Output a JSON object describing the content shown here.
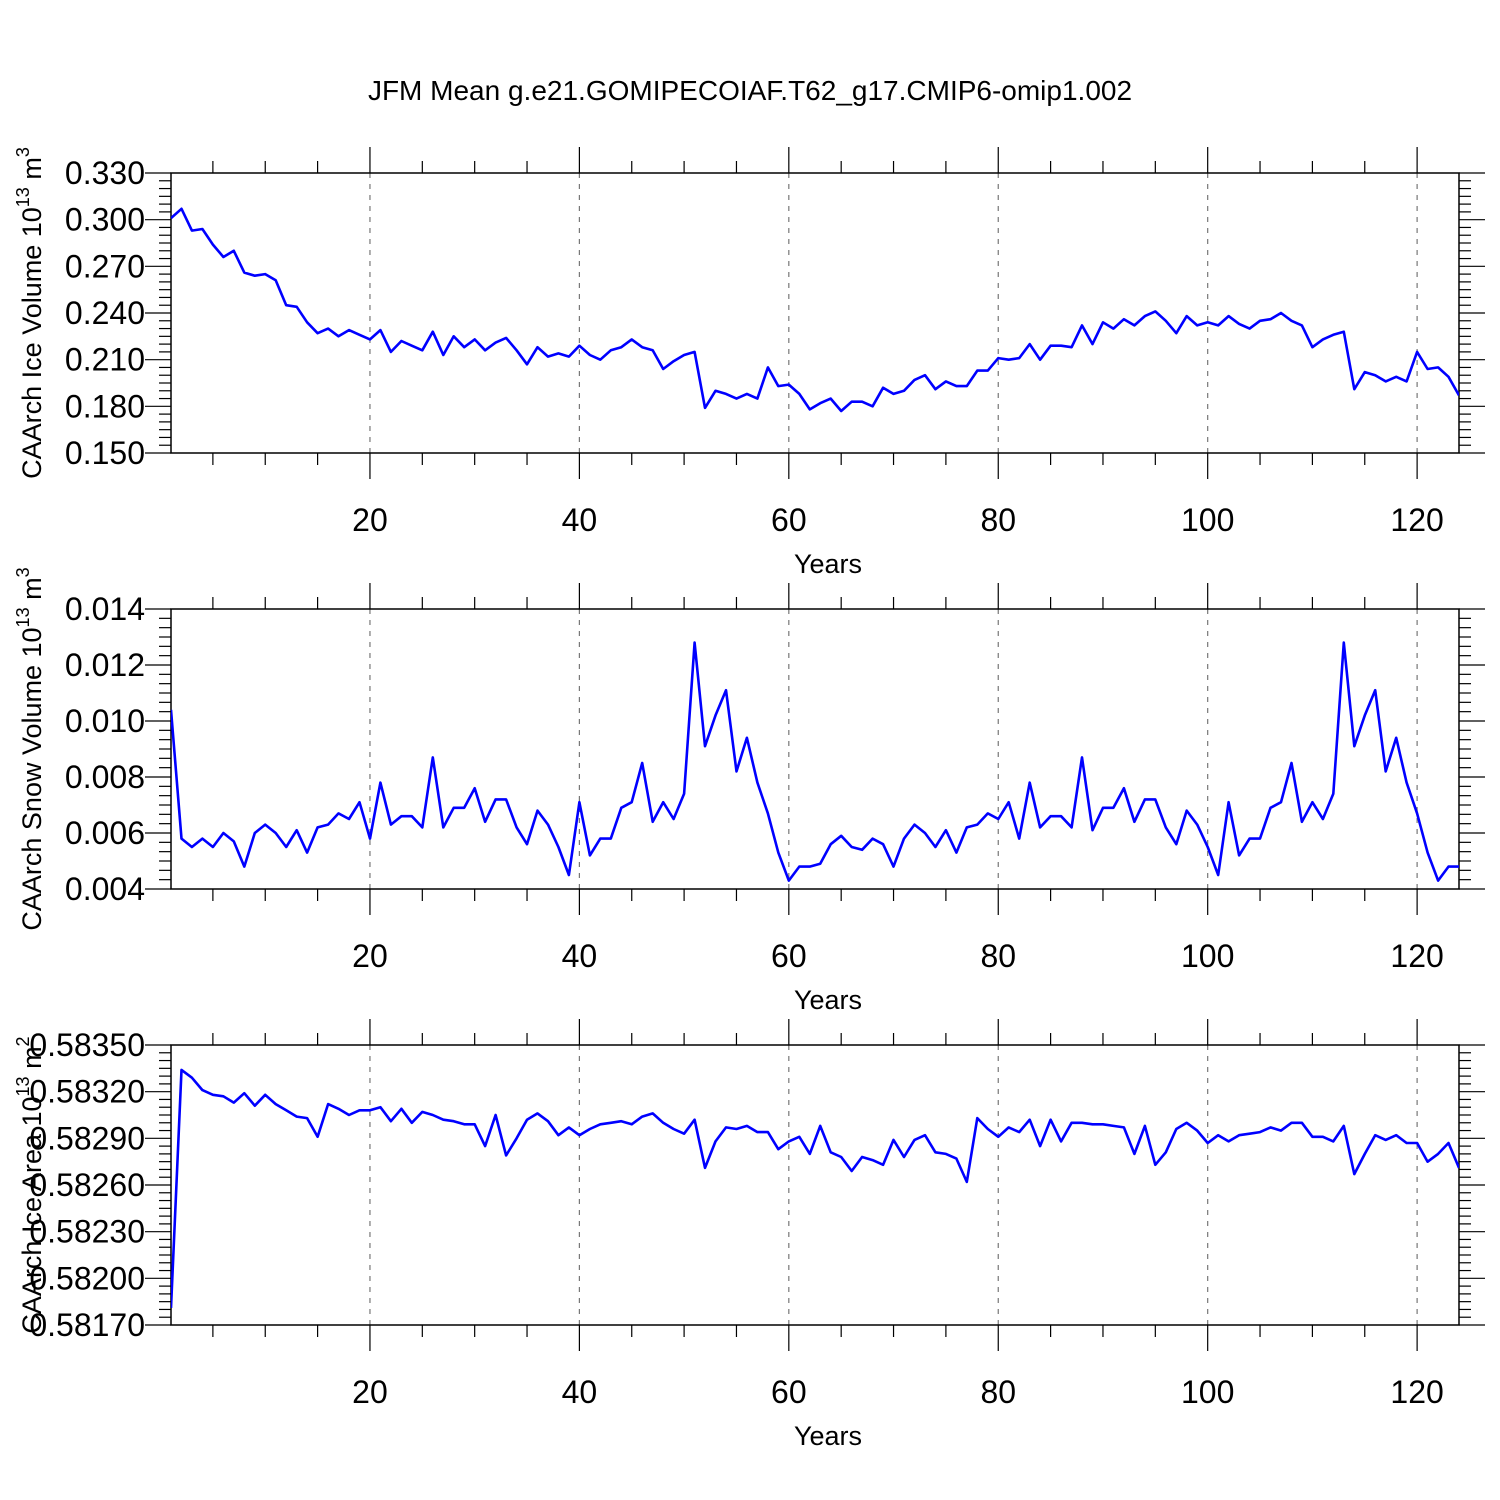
{
  "title": "JFM Mean g.e21.GOMIPECOIAF.T62_g17.CMIP6-omip1.002",
  "chart_data": [
    {
      "type": "line",
      "xlabel": "Years",
      "ylabel": "CAArch Ice Volume 10",
      "ylabel_exp": "13",
      "ylabel_unit": "m",
      "ylabel_unit_exp": "3",
      "xlim": [
        1,
        124
      ],
      "ylim": [
        0.15,
        0.33
      ],
      "xticks": [
        20,
        40,
        60,
        80,
        100,
        120
      ],
      "yticks": [
        "0.150",
        "0.180",
        "0.210",
        "0.240",
        "0.270",
        "0.300",
        "0.330"
      ],
      "grid_x": [
        20,
        40,
        60,
        80,
        100,
        120
      ],
      "series": [
        {
          "color": "#0000ff",
          "x_start": 1,
          "values": [
            0.301,
            0.307,
            0.293,
            0.294,
            0.284,
            0.276,
            0.28,
            0.266,
            0.264,
            0.265,
            0.261,
            0.245,
            0.244,
            0.234,
            0.227,
            0.23,
            0.225,
            0.229,
            0.226,
            0.223,
            0.229,
            0.215,
            0.222,
            0.219,
            0.216,
            0.228,
            0.213,
            0.225,
            0.218,
            0.223,
            0.216,
            0.221,
            0.224,
            0.216,
            0.207,
            0.218,
            0.212,
            0.214,
            0.212,
            0.219,
            0.213,
            0.21,
            0.216,
            0.218,
            0.223,
            0.218,
            0.216,
            0.204,
            0.209,
            0.213,
            0.215,
            0.179,
            0.19,
            0.188,
            0.185,
            0.188,
            0.185,
            0.205,
            0.193,
            0.194,
            0.188,
            0.178,
            0.182,
            0.185,
            0.177,
            0.183,
            0.183,
            0.18,
            0.192,
            0.188,
            0.19,
            0.197,
            0.2,
            0.191,
            0.196,
            0.193,
            0.193,
            0.203,
            0.203,
            0.211,
            0.21,
            0.211,
            0.22,
            0.21,
            0.219,
            0.219,
            0.218,
            0.232,
            0.22,
            0.234,
            0.23,
            0.236,
            0.232,
            0.238,
            0.241,
            0.235,
            0.227,
            0.238,
            0.232,
            0.234,
            0.232,
            0.238,
            0.233,
            0.23,
            0.235,
            0.236,
            0.24,
            0.235,
            0.232,
            0.218,
            0.223,
            0.226,
            0.228,
            0.191,
            0.202,
            0.2,
            0.196,
            0.199,
            0.196,
            0.215,
            0.204,
            0.205,
            0.199,
            0.187
          ]
        }
      ]
    },
    {
      "type": "line",
      "xlabel": "Years",
      "ylabel": "CAArch Snow Volume 10",
      "ylabel_exp": "13",
      "ylabel_unit": "m",
      "ylabel_unit_exp": "3",
      "xlim": [
        1,
        124
      ],
      "ylim": [
        0.004,
        0.014
      ],
      "xticks": [
        20,
        40,
        60,
        80,
        100,
        120
      ],
      "yticks": [
        "0.004",
        "0.006",
        "0.008",
        "0.010",
        "0.012",
        "0.014"
      ],
      "grid_x": [
        20,
        40,
        60,
        80,
        100,
        120
      ],
      "series": [
        {
          "color": "#0000ff",
          "x_start": 1,
          "values": [
            0.0104,
            0.0058,
            0.0055,
            0.0058,
            0.0055,
            0.006,
            0.0057,
            0.0048,
            0.006,
            0.0063,
            0.006,
            0.0055,
            0.0061,
            0.0053,
            0.0062,
            0.0063,
            0.0067,
            0.0065,
            0.0071,
            0.0058,
            0.0078,
            0.0063,
            0.0066,
            0.0066,
            0.0062,
            0.0087,
            0.0062,
            0.0069,
            0.0069,
            0.0076,
            0.0064,
            0.0072,
            0.0072,
            0.0062,
            0.0056,
            0.0068,
            0.0063,
            0.0055,
            0.0045,
            0.0071,
            0.0052,
            0.0058,
            0.0058,
            0.0069,
            0.0071,
            0.0085,
            0.0064,
            0.0071,
            0.0065,
            0.0074,
            0.0128,
            0.0091,
            0.0102,
            0.0111,
            0.0082,
            0.0094,
            0.0078,
            0.0067,
            0.0053,
            0.0043,
            0.0048,
            0.0048,
            0.0049,
            0.0056,
            0.0059,
            0.0055,
            0.0054,
            0.0058,
            0.0056,
            0.0048,
            0.0058,
            0.0063,
            0.006,
            0.0055,
            0.0061,
            0.0053,
            0.0062,
            0.0063,
            0.0067,
            0.0065,
            0.0071,
            0.0058,
            0.0078,
            0.0062,
            0.0066,
            0.0066,
            0.0062,
            0.0087,
            0.0061,
            0.0069,
            0.0069,
            0.0076,
            0.0064,
            0.0072,
            0.0072,
            0.0062,
            0.0056,
            0.0068,
            0.0063,
            0.0055,
            0.0045,
            0.0071,
            0.0052,
            0.0058,
            0.0058,
            0.0069,
            0.0071,
            0.0085,
            0.0064,
            0.0071,
            0.0065,
            0.0074,
            0.0128,
            0.0091,
            0.0102,
            0.0111,
            0.0082,
            0.0094,
            0.0078,
            0.0067,
            0.0053,
            0.0043,
            0.0048,
            0.0048
          ]
        }
      ]
    },
    {
      "type": "line",
      "xlabel": "Years",
      "ylabel": "CAArch Ice Area 10",
      "ylabel_exp": "13",
      "ylabel_unit": "m",
      "ylabel_unit_exp": "2",
      "xlim": [
        1,
        124
      ],
      "ylim": [
        0.5817,
        0.5835
      ],
      "xticks": [
        20,
        40,
        60,
        80,
        100,
        120
      ],
      "yticks": [
        "0.58170",
        "0.58200",
        "0.58230",
        "0.58260",
        "0.58290",
        "0.58320",
        "0.58350"
      ],
      "grid_x": [
        20,
        40,
        60,
        80,
        100,
        120
      ],
      "series": [
        {
          "color": "#0000ff",
          "x_start": 1,
          "values": [
            0.58181,
            0.58334,
            0.58329,
            0.58321,
            0.58318,
            0.58317,
            0.58313,
            0.58319,
            0.58311,
            0.58318,
            0.58312,
            0.58308,
            0.58304,
            0.58303,
            0.58291,
            0.58312,
            0.58309,
            0.58305,
            0.58308,
            0.58308,
            0.5831,
            0.58301,
            0.58309,
            0.583,
            0.58307,
            0.58305,
            0.58302,
            0.58301,
            0.58299,
            0.58299,
            0.58285,
            0.58305,
            0.58279,
            0.5829,
            0.58302,
            0.58306,
            0.58301,
            0.58292,
            0.58297,
            0.58292,
            0.58296,
            0.58299,
            0.583,
            0.58301,
            0.58299,
            0.58304,
            0.58306,
            0.583,
            0.58296,
            0.58293,
            0.58302,
            0.58271,
            0.58288,
            0.58297,
            0.58296,
            0.58298,
            0.58294,
            0.58294,
            0.58283,
            0.58288,
            0.58291,
            0.5828,
            0.58298,
            0.58281,
            0.58278,
            0.58269,
            0.58278,
            0.58276,
            0.58273,
            0.58289,
            0.58278,
            0.58289,
            0.58292,
            0.58281,
            0.5828,
            0.58277,
            0.58262,
            0.58303,
            0.58296,
            0.58291,
            0.58297,
            0.58294,
            0.58302,
            0.58285,
            0.58302,
            0.58288,
            0.583,
            0.583,
            0.58299,
            0.58299,
            0.58298,
            0.58297,
            0.5828,
            0.58298,
            0.58273,
            0.58281,
            0.58296,
            0.583,
            0.58295,
            0.58287,
            0.58292,
            0.58288,
            0.58292,
            0.58293,
            0.58294,
            0.58297,
            0.58295,
            0.583,
            0.583,
            0.58291,
            0.58291,
            0.58288,
            0.58298,
            0.58267,
            0.5828,
            0.58292,
            0.58289,
            0.58292,
            0.58287,
            0.58287,
            0.58275,
            0.5828,
            0.58287,
            0.58271
          ]
        }
      ]
    }
  ]
}
